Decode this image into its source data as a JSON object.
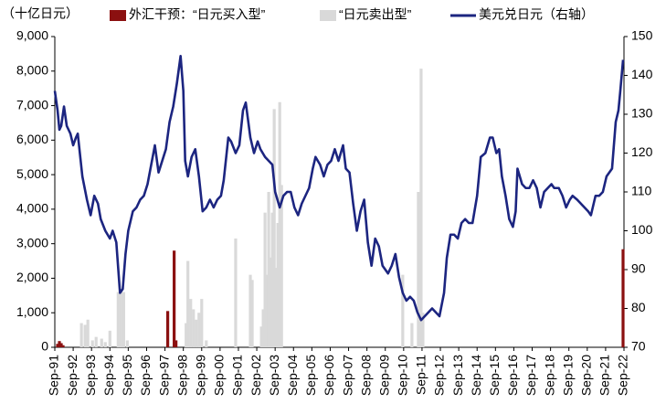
{
  "chart_data": {
    "type": "combo",
    "unit_label": "（十亿日元）",
    "xlim": [
      1991.75,
      2022.75
    ],
    "xticks": [
      {
        "value": 1991.75,
        "label": "Sep-91"
      },
      {
        "value": 1992.75,
        "label": "Sep-92"
      },
      {
        "value": 1993.75,
        "label": "Sep-93"
      },
      {
        "value": 1994.75,
        "label": "Sep-94"
      },
      {
        "value": 1995.75,
        "label": "Sep-95"
      },
      {
        "value": 1996.75,
        "label": "Sep-96"
      },
      {
        "value": 1997.75,
        "label": "Sep-97"
      },
      {
        "value": 1998.75,
        "label": "Sep-98"
      },
      {
        "value": 1999.75,
        "label": "Sep-99"
      },
      {
        "value": 2000.75,
        "label": "Sep-00"
      },
      {
        "value": 2001.75,
        "label": "Sep-01"
      },
      {
        "value": 2002.75,
        "label": "Sep-02"
      },
      {
        "value": 2003.75,
        "label": "Sep-03"
      },
      {
        "value": 2004.75,
        "label": "Sep-04"
      },
      {
        "value": 2005.75,
        "label": "Sep-05"
      },
      {
        "value": 2006.75,
        "label": "Sep-06"
      },
      {
        "value": 2007.75,
        "label": "Sep-07"
      },
      {
        "value": 2008.75,
        "label": "Sep-08"
      },
      {
        "value": 2009.75,
        "label": "Sep-09"
      },
      {
        "value": 2010.75,
        "label": "Sep-10"
      },
      {
        "value": 2011.75,
        "label": "Sep-11"
      },
      {
        "value": 2012.75,
        "label": "Sep-12"
      },
      {
        "value": 2013.75,
        "label": "Sep-13"
      },
      {
        "value": 2014.75,
        "label": "Sep-14"
      },
      {
        "value": 2015.75,
        "label": "Sep-15"
      },
      {
        "value": 2016.75,
        "label": "Sep-16"
      },
      {
        "value": 2017.75,
        "label": "Sep-17"
      },
      {
        "value": 2018.75,
        "label": "Sep-18"
      },
      {
        "value": 2019.75,
        "label": "Sep-19"
      },
      {
        "value": 2020.75,
        "label": "Sep-20"
      },
      {
        "value": 2021.75,
        "label": "Sep-21"
      },
      {
        "value": 2022.75,
        "label": "Sep-22"
      }
    ],
    "ylim": [
      0,
      9000
    ],
    "yticks": [
      0,
      {
        "value": 1000,
        "label": "1,000"
      },
      {
        "value": 2000,
        "label": "2,000"
      },
      {
        "value": 3000,
        "label": "3,000"
      },
      {
        "value": 4000,
        "label": "4,000"
      },
      {
        "value": 5000,
        "label": "5,000"
      },
      {
        "value": 6000,
        "label": "6,000"
      },
      {
        "value": 7000,
        "label": "7,000"
      },
      {
        "value": 8000,
        "label": "8,000"
      },
      {
        "value": 9000,
        "label": "9,000"
      }
    ],
    "y2lim": [
      70,
      150
    ],
    "y2ticks": [
      70,
      80,
      90,
      100,
      110,
      120,
      130,
      140,
      150
    ],
    "series": [
      {
        "name": "外汇干预：“日元买入型”",
        "type": "bar",
        "color": "#8b1010",
        "x": [
          1991.9,
          1992.0,
          1992.1,
          1992.2,
          1997.9,
          1998.25,
          1998.35,
          2022.7
        ],
        "values": [
          100,
          180,
          120,
          60,
          1050,
          2800,
          200,
          2840
        ]
      },
      {
        "name": "“日元卖出型”",
        "type": "bar",
        "color": "#d9d9d9",
        "x": [
          1993.2,
          1993.4,
          1993.55,
          1993.8,
          1994.0,
          1994.3,
          1994.5,
          1994.75,
          1995.2,
          1995.35,
          1995.5,
          1995.7,
          1998.9,
          1999.0,
          1999.15,
          1999.3,
          1999.45,
          1999.6,
          1999.75,
          2000.0,
          2001.6,
          2002.4,
          2002.5,
          2003.0,
          2003.1,
          2003.2,
          2003.3,
          2003.4,
          2003.5,
          2003.6,
          2003.7,
          2003.8,
          2003.9,
          2004.0,
          2004.1,
          2010.7,
          2011.2,
          2011.55,
          2011.7,
          2011.8
        ],
        "values": [
          700,
          650,
          800,
          200,
          300,
          250,
          150,
          480,
          1600,
          1700,
          1600,
          200,
          700,
          2500,
          1400,
          1100,
          800,
          1000,
          1400,
          200,
          3150,
          2100,
          1950,
          600,
          1100,
          3900,
          2100,
          4500,
          2600,
          3900,
          6900,
          2300,
          3600,
          7100,
          4700,
          2100,
          700,
          4500,
          8070,
          1000
        ]
      },
      {
        "name": "美元兑日元（右轴）",
        "type": "line",
        "axis": "y2",
        "color": "#1c2580",
        "x": [
          1991.75,
          1991.9,
          1992.0,
          1992.1,
          1992.25,
          1992.4,
          1992.6,
          1992.75,
          1992.9,
          1993.0,
          1993.25,
          1993.5,
          1993.7,
          1993.9,
          1994.1,
          1994.25,
          1994.5,
          1994.75,
          1994.9,
          1995.1,
          1995.3,
          1995.45,
          1995.6,
          1995.75,
          1996.0,
          1996.2,
          1996.4,
          1996.6,
          1996.8,
          1997.0,
          1997.2,
          1997.4,
          1997.6,
          1997.8,
          1998.0,
          1998.2,
          1998.4,
          1998.6,
          1998.75,
          1998.85,
          1999.0,
          1999.2,
          1999.4,
          1999.6,
          1999.8,
          2000.0,
          2000.2,
          2000.4,
          2000.6,
          2000.8,
          2000.95,
          2001.2,
          2001.35,
          2001.6,
          2001.8,
          2002.0,
          2002.15,
          2002.4,
          2002.6,
          2002.8,
          2002.95,
          2003.2,
          2003.4,
          2003.6,
          2003.75,
          2004.0,
          2004.2,
          2004.4,
          2004.6,
          2004.8,
          2005.0,
          2005.2,
          2005.4,
          2005.6,
          2005.8,
          2005.95,
          2006.2,
          2006.4,
          2006.6,
          2006.8,
          2007.0,
          2007.2,
          2007.45,
          2007.6,
          2007.8,
          2008.0,
          2008.2,
          2008.4,
          2008.6,
          2008.8,
          2009.0,
          2009.2,
          2009.4,
          2009.6,
          2009.9,
          2010.1,
          2010.3,
          2010.5,
          2010.7,
          2010.9,
          2011.1,
          2011.3,
          2011.5,
          2011.7,
          2011.9,
          2012.1,
          2012.3,
          2012.5,
          2012.7,
          2012.95,
          2013.1,
          2013.3,
          2013.5,
          2013.7,
          2013.9,
          2014.1,
          2014.3,
          2014.5,
          2014.75,
          2014.95,
          2015.2,
          2015.45,
          2015.6,
          2015.8,
          2015.95,
          2016.1,
          2016.3,
          2016.5,
          2016.7,
          2016.85,
          2016.95,
          2017.2,
          2017.4,
          2017.6,
          2017.8,
          2018.0,
          2018.2,
          2018.4,
          2018.6,
          2018.8,
          2018.95,
          2019.2,
          2019.4,
          2019.6,
          2019.8,
          2019.95,
          2020.2,
          2020.4,
          2020.6,
          2020.8,
          2020.95,
          2021.2,
          2021.4,
          2021.6,
          2021.8,
          2021.95,
          2022.1,
          2022.3,
          2022.45,
          2022.55,
          2022.7
        ],
        "values": [
          136,
          131,
          126,
          127,
          132,
          127,
          125,
          122,
          124,
          125,
          114,
          108,
          104,
          109,
          107,
          103,
          100,
          98,
          100,
          97,
          84,
          85,
          94,
          100,
          105,
          106,
          108,
          109,
          112,
          117,
          122,
          115,
          118,
          121,
          128,
          132,
          138,
          145,
          136,
          118,
          114,
          119,
          121,
          114,
          105,
          106,
          108,
          106,
          108,
          109,
          113,
          124,
          123,
          120,
          122,
          131,
          133,
          124,
          120,
          123,
          121,
          119,
          118,
          117,
          110,
          106,
          109,
          110,
          110,
          106,
          104,
          107,
          109,
          111,
          116,
          119,
          117,
          114,
          117,
          118,
          121,
          118,
          122,
          116,
          115,
          107,
          100,
          105,
          108,
          97,
          91,
          98,
          96,
          91,
          89,
          91,
          94,
          88,
          84,
          82,
          83,
          82,
          79,
          77,
          78,
          79,
          80,
          79,
          78,
          84,
          93,
          99,
          99,
          98,
          102,
          103,
          102,
          102,
          109,
          119,
          120,
          124,
          124,
          120,
          121,
          114,
          109,
          103,
          101,
          105,
          116,
          112,
          111,
          111,
          113,
          111,
          106,
          110,
          111,
          112,
          111,
          111,
          109,
          106,
          108,
          109,
          108,
          107,
          106,
          105,
          104,
          109,
          109,
          110,
          114,
          115,
          116,
          128,
          131,
          136,
          144
        ]
      }
    ]
  }
}
